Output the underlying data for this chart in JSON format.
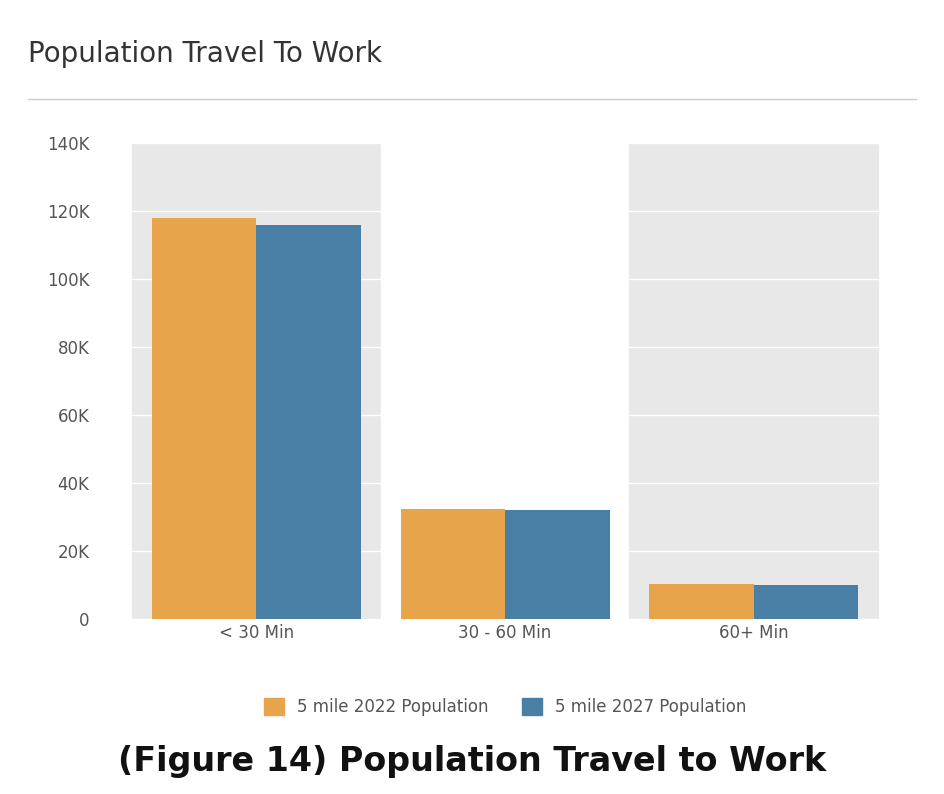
{
  "title": "Population Travel To Work",
  "caption": "(Figure 14) Population Travel to Work",
  "categories": [
    "< 30 Min",
    "30 - 60 Min",
    "60+ Min"
  ],
  "series": [
    {
      "name": "5 mile 2022 Population",
      "color": "#E8A44A",
      "values": [
        118000,
        32500,
        10500
      ]
    },
    {
      "name": "5 mile 2027 Population",
      "color": "#4A7FA5",
      "values": [
        116000,
        32000,
        10000
      ]
    }
  ],
  "ylim": [
    0,
    140000
  ],
  "yticks": [
    0,
    20000,
    40000,
    60000,
    80000,
    100000,
    120000,
    140000
  ],
  "ytick_labels": [
    "0",
    "20K",
    "40K",
    "60K",
    "80K",
    "100K",
    "120K",
    "140K"
  ],
  "bar_width": 0.42,
  "background_color": "#ffffff",
  "col_bg_odd": "#e8e8e8",
  "col_bg_even": "#ffffff",
  "grid_color": "#ffffff",
  "title_fontsize": 20,
  "caption_fontsize": 24,
  "legend_fontsize": 12,
  "tick_fontsize": 12,
  "xlabel_fontsize": 12,
  "title_color": "#333333",
  "tick_color": "#555555"
}
